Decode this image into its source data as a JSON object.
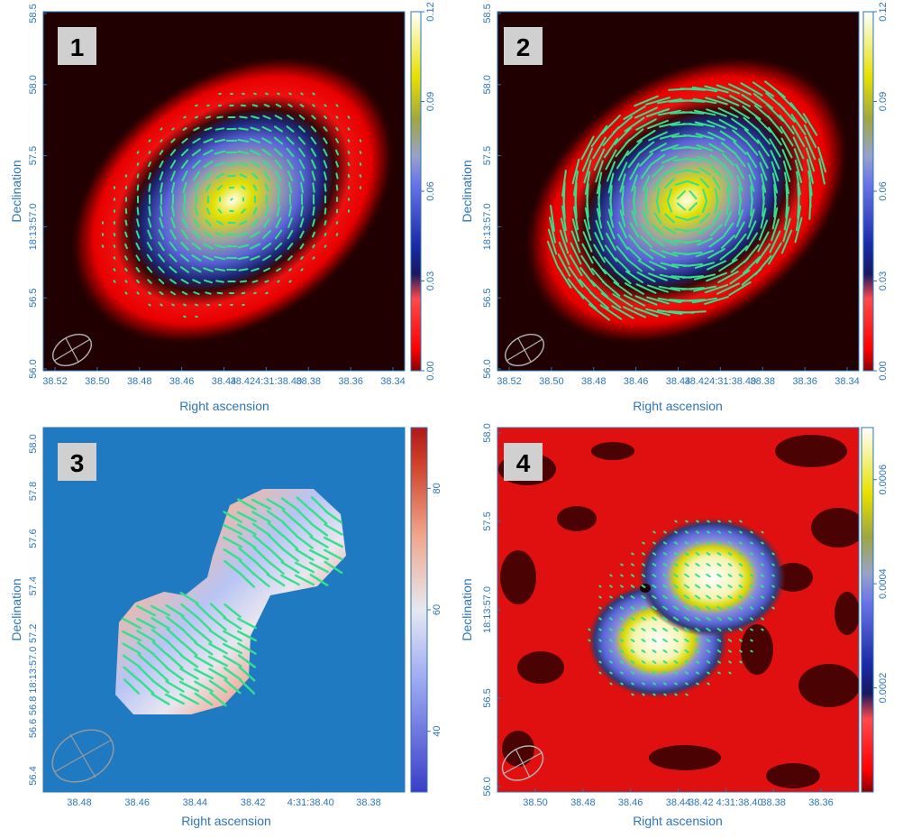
{
  "chart_data": [
    {
      "type": "heatmap",
      "panel_label": "1",
      "xlabel": "Right ascension",
      "ylabel": "Declination",
      "x_ticks": [
        "38.52",
        "38.50",
        "38.48",
        "38.46",
        "38.44",
        "38.424:31:38.40",
        "38.38",
        "38.36",
        "38.34"
      ],
      "y_ticks": [
        "56.0",
        "56.5",
        "18:13:57.0",
        "57.5",
        "58.0",
        "58.5"
      ],
      "colorbar": {
        "ticks": [
          "0.00",
          "0.03",
          "0.06",
          "0.09",
          "0.12"
        ],
        "range": [
          0,
          0.12
        ],
        "colormap": "red-blue-yellow-white"
      },
      "overlay": "polarization-vectors",
      "beam": "ellipse"
    },
    {
      "type": "heatmap",
      "panel_label": "2",
      "xlabel": "Right ascension",
      "ylabel": "Declination",
      "x_ticks": [
        "38.52",
        "38.50",
        "38.48",
        "38.46",
        "38.44",
        "38.424:31:38.40",
        "38.38",
        "38.36",
        "38.34"
      ],
      "y_ticks": [
        "56.0",
        "56.5",
        "18:13:57.0",
        "57.5",
        "58.0",
        "58.5"
      ],
      "colorbar": {
        "ticks": [
          "0.00",
          "0.03",
          "0.06",
          "0.09",
          "0.12"
        ],
        "range": [
          0,
          0.12
        ],
        "colormap": "red-blue-yellow-white"
      },
      "overlay": "polarization-vectors",
      "beam": "ellipse"
    },
    {
      "type": "heatmap",
      "panel_label": "3",
      "xlabel": "Right ascension",
      "ylabel": "Declination",
      "x_ticks": [
        "38.48",
        "38.46",
        "38.44",
        "38.42",
        "4:31:38.40",
        "38.38"
      ],
      "y_ticks": [
        "56.4",
        "56.6",
        "56.8 18:13:57.0",
        "57.2",
        "57.4",
        "57.6",
        "57.8",
        "58.0"
      ],
      "colorbar": {
        "ticks": [
          "40",
          "60",
          "80"
        ],
        "range": [
          30,
          90
        ],
        "colormap": "blue-white-red"
      },
      "overlay": "polarization-vectors",
      "beam": "ellipse"
    },
    {
      "type": "heatmap",
      "panel_label": "4",
      "xlabel": "Right ascension",
      "ylabel": "Declination",
      "x_ticks": [
        "38.50",
        "38.48",
        "38.46",
        "38.44",
        "38.42 4:31:38.40",
        "38.38",
        "38.36"
      ],
      "y_ticks": [
        "56.0",
        "56.5",
        "18:13:57.0",
        "57.5",
        "58.0"
      ],
      "colorbar": {
        "ticks": [
          "0.0002",
          "0.0004",
          "0.0006"
        ],
        "range": [
          0,
          0.0007
        ],
        "colormap": "red-blue-yellow-white"
      },
      "overlay": "polarization-vectors",
      "beam": "ellipse"
    }
  ],
  "colors": {
    "axis_text": "#2d76b8",
    "vector": "#35e08c",
    "panel3_background": "#1f7ac2",
    "beam": "#b4b4b4"
  }
}
